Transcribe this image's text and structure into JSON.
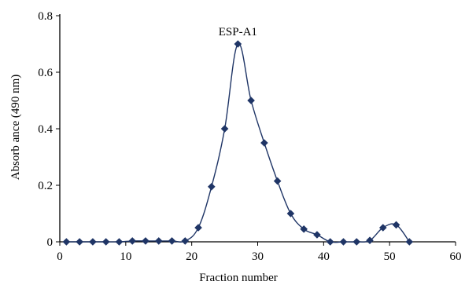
{
  "chart_data": {
    "type": "line",
    "title": "",
    "xlabel": "Fraction number",
    "ylabel": "Absorb ance (490 nm)",
    "xlim": [
      0,
      60
    ],
    "ylim": [
      0,
      0.8
    ],
    "x_ticks": [
      0,
      10,
      20,
      30,
      40,
      50,
      60
    ],
    "y_ticks": [
      0,
      0.2,
      0.4,
      0.6,
      0.8
    ],
    "x_tick_labels": [
      "0",
      "10",
      "20",
      "30",
      "40",
      "50",
      "60"
    ],
    "y_tick_labels": [
      "0",
      "0.2",
      "0.4",
      "0.6",
      "0.8"
    ],
    "grid": false,
    "smooth": true,
    "series_color": "#1f3566",
    "annotations": [
      {
        "text": "ESP-A1",
        "x": 27,
        "y": 0.73
      }
    ],
    "series": [
      {
        "x": [
          1,
          3,
          5,
          7,
          9,
          11,
          13,
          15,
          17,
          19,
          21,
          23,
          25,
          27,
          29,
          31,
          33,
          35,
          37,
          39,
          41,
          43,
          45,
          47,
          49,
          51,
          53
        ],
        "values": [
          0,
          0,
          0,
          0,
          0,
          0.003,
          0.003,
          0.003,
          0.003,
          0.003,
          0.05,
          0.195,
          0.4,
          0.7,
          0.5,
          0.35,
          0.215,
          0.1,
          0.045,
          0.025,
          0,
          0,
          0,
          0.005,
          0.05,
          0.06,
          0
        ]
      }
    ]
  }
}
